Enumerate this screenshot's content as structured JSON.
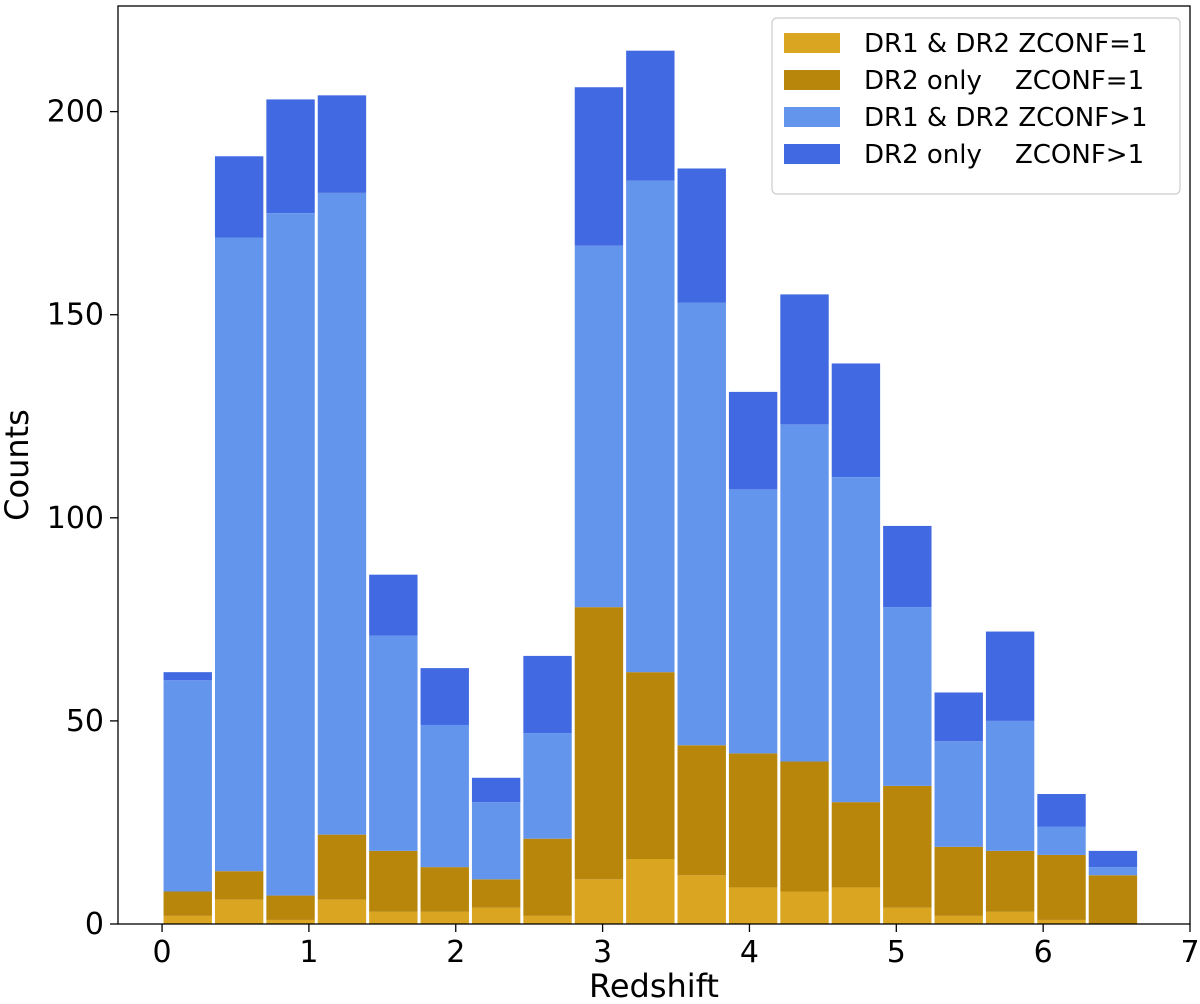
{
  "chart_data": {
    "type": "bar",
    "stacked": true,
    "xlabel": "Redshift",
    "ylabel": "Counts",
    "xlim": [
      -0.3,
      7.0
    ],
    "ylim": [
      0,
      226
    ],
    "xticks": [
      0,
      1,
      2,
      3,
      4,
      5,
      6,
      7
    ],
    "yticks": [
      0,
      50,
      100,
      150,
      200
    ],
    "bin_width": 0.35,
    "bins_left": [
      0.0,
      0.35,
      0.7,
      1.05,
      1.4,
      1.75,
      2.1,
      2.45,
      2.8,
      3.15,
      3.5,
      3.85,
      4.2,
      4.55,
      4.9,
      5.25,
      5.6,
      5.95,
      6.3
    ],
    "series": [
      {
        "name": "DR1 & DR2 ZCONF=1",
        "color": "#DAA520",
        "values": [
          2,
          6,
          1,
          6,
          3,
          3,
          4,
          2,
          11,
          16,
          12,
          9,
          8,
          9,
          4,
          2,
          3,
          1,
          0
        ]
      },
      {
        "name": "DR2 only    ZCONF=1",
        "color": "#B8860B",
        "values": [
          6,
          7,
          6,
          16,
          15,
          11,
          7,
          19,
          67,
          46,
          32,
          33,
          32,
          21,
          30,
          17,
          15,
          16,
          12
        ]
      },
      {
        "name": "DR1 & DR2 ZCONF>1",
        "color": "#6495ED",
        "values": [
          52,
          156,
          168,
          158,
          53,
          35,
          19,
          26,
          89,
          121,
          109,
          65,
          83,
          80,
          44,
          26,
          32,
          7,
          2
        ]
      },
      {
        "name": "DR2 only    ZCONF>1",
        "color": "#4169E1",
        "values": [
          2,
          20,
          28,
          24,
          15,
          14,
          6,
          19,
          39,
          32,
          33,
          24,
          32,
          28,
          20,
          12,
          22,
          8,
          4
        ]
      }
    ],
    "legend_position": "top-right"
  }
}
